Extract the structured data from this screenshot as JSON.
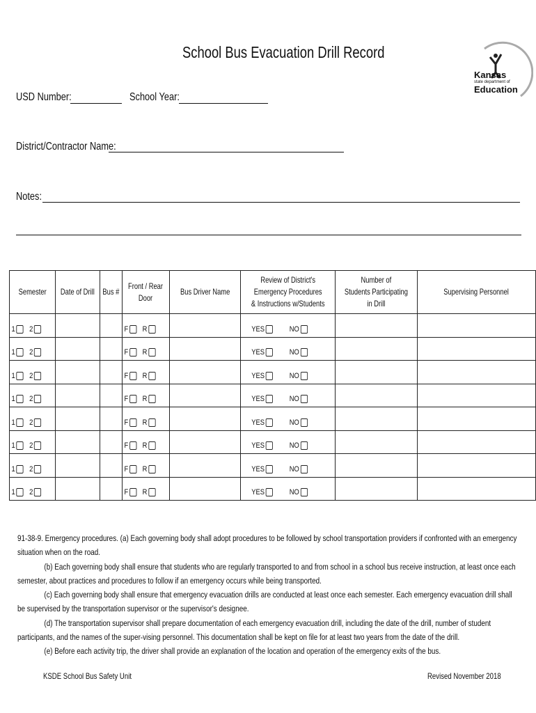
{
  "title": "School Bus Evacuation Drill Record",
  "logo": {
    "line1": "Kansas",
    "line2": "state department of",
    "line3": "Education"
  },
  "fields": {
    "usd_label": "USD Number:",
    "usd_value": "",
    "year_label": "School Year:",
    "year_value": "",
    "district_label": "District/Contractor Name:",
    "district_value": "",
    "notes_label": "Notes:",
    "notes_value": ""
  },
  "table": {
    "headers": [
      [
        "Semester"
      ],
      [
        "Date of Drill"
      ],
      [
        "Bus #"
      ],
      [
        "Front / Rear",
        "Door"
      ],
      [
        "Bus Driver Name"
      ],
      [
        "Review of District's",
        "Emergency Procedures",
        "& Instructions  w/Students"
      ],
      [
        "Number of",
        "Students Participating",
        "in Drill"
      ],
      [
        "Supervising Personnel"
      ]
    ],
    "row_labels": {
      "sem1": "1",
      "sem2": "2",
      "front": "F",
      "rear": "R",
      "yes": "YES",
      "no": "NO"
    },
    "row_count": 8
  },
  "legal": {
    "a": "91-38-9.  Emergency  procedures.   (a) Each governing body shall adopt procedures to be followed by school transportation providers if confronted with an emergency situation when on the road.",
    "b": "(b)  Each governing body shall ensure that students who are regularly transported to and from school in a school bus receive instruction, at least once each semester, about practices and procedures to follow if an emergency occurs while being transported.",
    "c": "(c)  Each governing body shall ensure that emergency evacuation drills are conducted at least once each semester. Each emergency evacuation drill shall be supervised by the transportation supervisor or the supervisor's designee.",
    "d": "(d)  The transportation supervisor shall prepare documentation of each emergency evacuation drill, including the date of the drill, number of student participants, and the names of the super-vising personnel. This documentation shall be kept on file for at least two years from the date of the drill.",
    "e": "(e)  Before each activity trip, the driver shall provide an explanation of the location and operation of the emergency exits of the bus."
  },
  "footer": {
    "left": "KSDE School Bus Safety Unit",
    "right": "Revised November 2018"
  }
}
